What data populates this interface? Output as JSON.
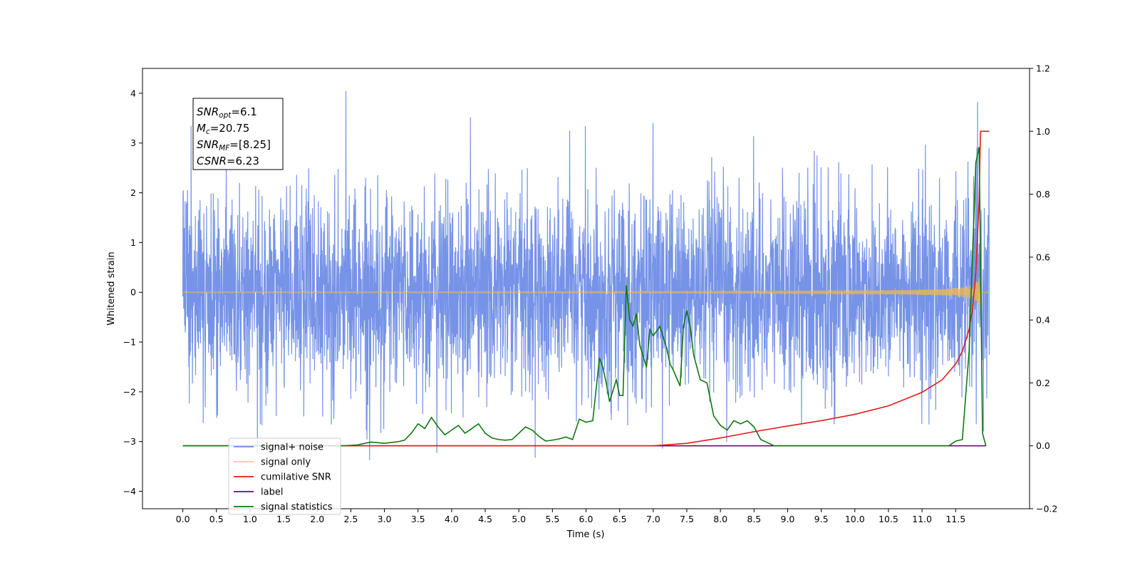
{
  "chart_data": {
    "type": "line",
    "title": "",
    "xlabel": "Time (s)",
    "ylabel": "Whitened strain",
    "xlim": [
      -0.6,
      12.6
    ],
    "ylim": [
      -4.35,
      4.5
    ],
    "y2lim": [
      -0.2,
      1.2
    ],
    "x_ticks": [
      "0.0",
      "0.5",
      "1.0",
      "1.5",
      "2.0",
      "2.5",
      "3.0",
      "3.5",
      "4.0",
      "4.5",
      "5.0",
      "5.5",
      "6.0",
      "6.5",
      "7.0",
      "7.5",
      "8.0",
      "8.5",
      "9.0",
      "9.5",
      "10.0",
      "10.5",
      "11.0",
      "11.5"
    ],
    "y_ticks": [
      "4",
      "3",
      "2",
      "1",
      "0",
      "−1",
      "−2",
      "−3",
      "−4"
    ],
    "y2_ticks": [
      "1.2",
      "1.0",
      "0.8",
      "0.6",
      "0.4",
      "0.2",
      "0.0",
      "−0.2"
    ],
    "grid": false,
    "legend_position": "lower-left",
    "annotation": {
      "lines": [
        {
          "name": "SNR",
          "sub": "opt",
          "value": "=6.1"
        },
        {
          "name": "M",
          "sub": "c",
          "value": "=20.75"
        },
        {
          "name": "SNR",
          "sub": "MF",
          "value": "=[8.25]"
        },
        {
          "name": "CSNR",
          "sub": "",
          "value": "=6.23"
        }
      ]
    },
    "series": [
      {
        "name": "signal+ noise",
        "axis": "left",
        "color": "#6f8de6",
        "description": "whitened noise with std about 1, range about -3.9 to 4.1, x 0 to 12.0"
      },
      {
        "name": "signal only",
        "axis": "left",
        "color": "#f5b94a",
        "description": "chirp growing from 0 amplitude to about +/-0.7 near x=11.8"
      },
      {
        "name": "cumilative SNR",
        "axis": "right",
        "color": "#e61a1a",
        "x": [
          0.0,
          7.0,
          7.5,
          8.0,
          8.5,
          9.0,
          9.5,
          10.0,
          10.5,
          11.0,
          11.3,
          11.5,
          11.6,
          11.7,
          11.75,
          11.8,
          11.85,
          11.86,
          11.87,
          12.0
        ],
        "values": [
          0.0,
          0.0,
          0.008,
          0.025,
          0.045,
          0.063,
          0.08,
          0.1,
          0.127,
          0.17,
          0.21,
          0.26,
          0.3,
          0.37,
          0.43,
          0.55,
          0.78,
          0.9,
          1.0,
          1.0
        ]
      },
      {
        "name": "label",
        "axis": "right",
        "color": "#6a0f6a",
        "x": [
          0.0,
          11.95
        ],
        "values": [
          0.0,
          0.0
        ]
      },
      {
        "name": "signal statistics",
        "axis": "right",
        "color": "#117711",
        "x": [
          0.0,
          2.4,
          2.6,
          2.8,
          3.0,
          3.2,
          3.3,
          3.4,
          3.5,
          3.6,
          3.7,
          3.8,
          3.9,
          4.0,
          4.1,
          4.2,
          4.3,
          4.4,
          4.5,
          4.6,
          4.7,
          4.8,
          4.9,
          5.0,
          5.1,
          5.2,
          5.3,
          5.4,
          5.5,
          5.6,
          5.7,
          5.8,
          5.9,
          6.0,
          6.1,
          6.2,
          6.25,
          6.3,
          6.35,
          6.45,
          6.5,
          6.55,
          6.6,
          6.65,
          6.7,
          6.75,
          6.8,
          6.9,
          6.95,
          7.0,
          7.1,
          7.2,
          7.25,
          7.3,
          7.4,
          7.45,
          7.5,
          7.55,
          7.6,
          7.7,
          7.8,
          7.9,
          8.0,
          8.1,
          8.2,
          8.3,
          8.4,
          8.5,
          8.6,
          8.7,
          8.8,
          9.0,
          9.5,
          10.0,
          10.5,
          11.0,
          11.4,
          11.5,
          11.6,
          11.7,
          11.75,
          11.8,
          11.85,
          11.9,
          11.95
        ],
        "values": [
          0.0,
          0.0,
          0.003,
          0.012,
          0.008,
          0.013,
          0.018,
          0.04,
          0.07,
          0.055,
          0.09,
          0.06,
          0.035,
          0.05,
          0.065,
          0.04,
          0.055,
          0.07,
          0.04,
          0.025,
          0.02,
          0.018,
          0.02,
          0.04,
          0.06,
          0.05,
          0.03,
          0.015,
          0.018,
          0.022,
          0.028,
          0.02,
          0.085,
          0.075,
          0.08,
          0.28,
          0.25,
          0.2,
          0.14,
          0.21,
          0.16,
          0.16,
          0.51,
          0.4,
          0.38,
          0.42,
          0.32,
          0.25,
          0.37,
          0.35,
          0.38,
          0.31,
          0.26,
          0.24,
          0.19,
          0.38,
          0.43,
          0.38,
          0.29,
          0.21,
          0.2,
          0.095,
          0.065,
          0.05,
          0.08,
          0.07,
          0.08,
          0.06,
          0.02,
          0.01,
          0.0,
          0.0,
          0.0,
          0.0,
          0.0,
          0.0,
          0.0,
          0.015,
          0.02,
          0.3,
          0.6,
          0.9,
          0.95,
          0.04,
          0.0
        ]
      }
    ]
  }
}
